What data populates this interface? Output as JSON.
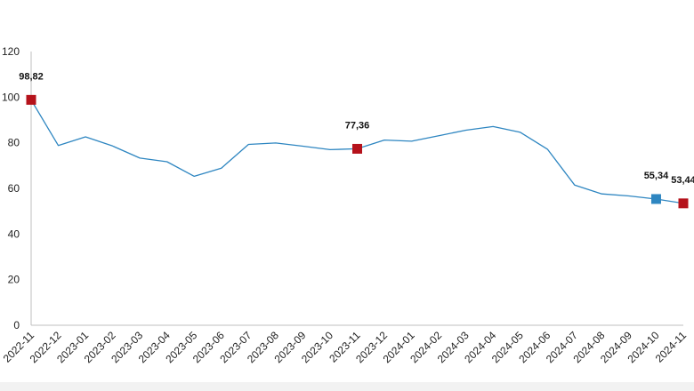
{
  "chart_data": {
    "type": "line",
    "title": "",
    "xlabel": "",
    "ylabel": "",
    "ylim": [
      0,
      120
    ],
    "yticks": [
      0,
      20,
      40,
      60,
      80,
      100,
      120
    ],
    "grid": false,
    "categories": [
      "2022-11",
      "2022-12",
      "2023-01",
      "2023-02",
      "2023-03",
      "2023-04",
      "2023-05",
      "2023-06",
      "2023-07",
      "2023-08",
      "2023-09",
      "2023-10",
      "2023-11",
      "2023-12",
      "2024-01",
      "2024-02",
      "2024-03",
      "2024-04",
      "2024-05",
      "2024-06",
      "2024-07",
      "2024-08",
      "2024-09",
      "2024-10",
      "2024-11"
    ],
    "series": [
      {
        "values": [
          98.82,
          78.8,
          82.6,
          78.6,
          73.3,
          71.7,
          65.3,
          68.9,
          79.3,
          79.9,
          78.5,
          77.0,
          77.36,
          81.2,
          80.7,
          83.1,
          85.5,
          87.1,
          84.6,
          77.2,
          61.5,
          57.6,
          56.7,
          55.34,
          53.44
        ],
        "color": "#2e86c1"
      }
    ],
    "highlights": [
      {
        "category": "2022-11",
        "value": 98.82,
        "label": "98,82",
        "color": "#b5121b"
      },
      {
        "category": "2023-11",
        "value": 77.36,
        "label": "77,36",
        "color": "#b5121b"
      },
      {
        "category": "2024-10",
        "value": 55.34,
        "label": "55,34",
        "color": "#2e86c1"
      },
      {
        "category": "2024-11",
        "value": 53.44,
        "label": "53,44",
        "color": "#b5121b"
      }
    ],
    "axis_color": "#bfbfbf"
  }
}
